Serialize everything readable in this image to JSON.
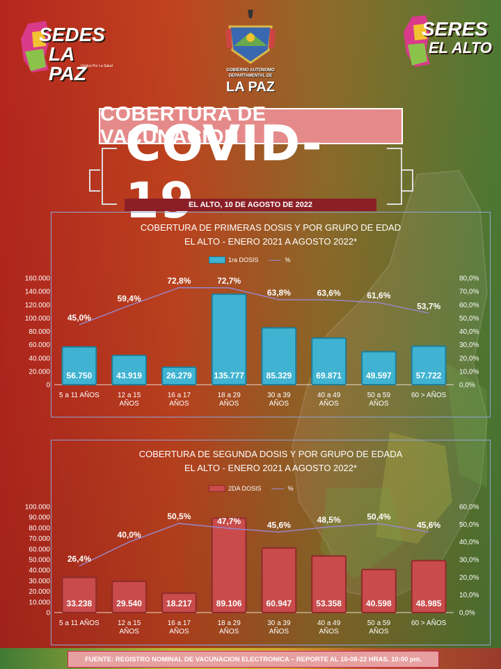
{
  "logos": {
    "left": {
      "line1": "SEDES",
      "line2": "LA PAZ",
      "tagline": "Unidos Por La Salud"
    },
    "center": {
      "line1": "GOBIERNO AUTONOMO",
      "line2": "DEPARTAMENTAL DE",
      "line3": "LA PAZ"
    },
    "right": {
      "line1": "SERES",
      "line2": "EL ALTO"
    }
  },
  "header": {
    "title": "COBERTURA DE VACUNACION",
    "covid_label": "COVID-19",
    "date_label": "EL ALTO, 10 DE AGOSTO DE 2022"
  },
  "footer": {
    "source": "FUENTE: REGISTRO NOMINAL DE VACUNACION ELECTRONICA – REPORTE AL 10-08-22 HRAS. 10:00 pm."
  },
  "colors": {
    "bar1": "#3fb3d1",
    "bar1_edge": "#1f7e98",
    "bar2": "#c94b4b",
    "bar2_edge": "#8f2a2a",
    "line": "#9a86c9"
  },
  "chart_data": [
    {
      "type": "bar",
      "title": "COBERTURA DE PRIMERAS DOSIS Y POR GRUPO DE EDAD",
      "subtitle": "EL ALTO - ENERO 2021 A AGOSTO 2022*",
      "categories": [
        "5 a 11 AÑOS",
        "12 a 15 AÑOS",
        "16 a 17 AÑOS",
        "18 a 29 AÑOS",
        "30 a 39 AÑOS",
        "40 a 49 AÑOS",
        "50 a 59 AÑOS",
        "60 > AÑOS"
      ],
      "series": [
        {
          "name": "1ra DOSIS",
          "values": [
            56750,
            43919,
            26279,
            135777,
            85329,
            69871,
            49597,
            57722
          ],
          "labels": [
            "56.750",
            "43.919",
            "26.279",
            "135.777",
            "85.329",
            "69.871",
            "49.597",
            "57.722"
          ]
        },
        {
          "name": "%",
          "type": "line",
          "axis": "right",
          "values": [
            45.0,
            59.4,
            72.8,
            72.7,
            63.8,
            63.6,
            61.6,
            53.7
          ],
          "labels": [
            "45,0%",
            "59,4%",
            "72,8%",
            "72,7%",
            "63,8%",
            "63,6%",
            "61,6%",
            "53,7%"
          ]
        }
      ],
      "ylim": [
        0,
        160000
      ],
      "y_ticks": [
        "0",
        "20.000",
        "40.000",
        "60.000",
        "80.000",
        "100.000",
        "120.000",
        "140.000",
        "160.000"
      ],
      "y2lim": [
        0,
        80
      ],
      "y2_ticks": [
        "0,0%",
        "10,0%",
        "20,0%",
        "30,0%",
        "40,0%",
        "50,0%",
        "60,0%",
        "70,0%",
        "80,0%"
      ],
      "legend": "top-center",
      "grid": false
    },
    {
      "type": "bar",
      "title": "COBERTURA DE SEGUNDA DOSIS Y POR GRUPO DE EDADA",
      "subtitle": "EL ALTO - ENERO 2021 A AGOSTO 2022*",
      "categories": [
        "5 a 11 AÑOS",
        "12 a 15 AÑOS",
        "16 a 17 AÑOS",
        "18 a 29 AÑOS",
        "30 a 39 AÑOS",
        "40 a 49 AÑOS",
        "50 a 59 AÑOS",
        "60 > AÑOS"
      ],
      "series": [
        {
          "name": "2DA DOSIS",
          "values": [
            33238,
            29540,
            18217,
            89106,
            60947,
            53358,
            40598,
            48985
          ],
          "labels": [
            "33.238",
            "29.540",
            "18.217",
            "89.106",
            "60.947",
            "53.358",
            "40.598",
            "48.985"
          ]
        },
        {
          "name": "%",
          "type": "line",
          "axis": "right",
          "values": [
            26.4,
            40.0,
            50.5,
            47.7,
            45.6,
            48.5,
            50.4,
            45.6
          ],
          "labels": [
            "26,4%",
            "40,0%",
            "50,5%",
            "47,7%",
            "45,6%",
            "48,5%",
            "50,4%",
            "45,6%"
          ]
        }
      ],
      "ylim": [
        0,
        100000
      ],
      "y_ticks": [
        "0",
        "10.000",
        "20.000",
        "30.000",
        "40.000",
        "50.000",
        "60.000",
        "70.000",
        "80.000",
        "90.000",
        "100.000"
      ],
      "y2lim": [
        0,
        60
      ],
      "y2_ticks": [
        "0,0%",
        "10,0%",
        "20,0%",
        "30,0%",
        "40,0%",
        "50,0%",
        "60,0%"
      ],
      "legend": "top-center",
      "grid": false
    }
  ]
}
